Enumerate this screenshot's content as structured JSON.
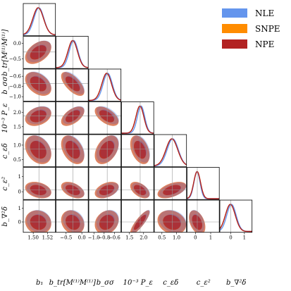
{
  "chart_data": {
    "type": "corner",
    "colors": {
      "NLE": "#6495ED",
      "SNPE": "#FF8C00",
      "NPE": "#B22222",
      "truth": "#999999"
    },
    "legend": {
      "placement": "top-right",
      "entries": [
        "NLE",
        "SNPE",
        "NPE"
      ]
    },
    "parameters": [
      {
        "label": "b₁",
        "ticks": [
          "1.50",
          "1.52"
        ],
        "tickvals": [
          1.5,
          1.52
        ],
        "range": [
          1.486,
          1.532
        ],
        "truth": 1.508
      },
      {
        "label": "b_tr[M⁽¹⁾M⁽¹⁾]",
        "ticks": [
          "−0.5",
          "0.0"
        ],
        "tickvals": [
          -0.5,
          0.0
        ],
        "range": [
          -0.82,
          0.22
        ],
        "truth": -0.28
      },
      {
        "label": "b_σσ",
        "ticks": [
          "−1.0",
          "−0.8",
          "−0.6"
        ],
        "tickvals": [
          -1.0,
          -0.8,
          -0.6
        ],
        "range": [
          -1.1,
          -0.46
        ],
        "truth": -0.74
      },
      {
        "label": "10⁻³ P_ε",
        "ticks": [
          "1.5",
          "2.0"
        ],
        "tickvals": [
          1.5,
          2.0
        ],
        "range": [
          1.22,
          2.38
        ],
        "truth": 1.88
      },
      {
        "label": "c_εδ",
        "ticks": [
          "0.5",
          "1.0"
        ],
        "tickvals": [
          0.5,
          1.0
        ],
        "range": [
          0.24,
          1.36
        ],
        "truth": 0.86
      },
      {
        "label": "c_ε²",
        "ticks": [
          "0",
          "1"
        ],
        "tickvals": [
          0,
          1
        ],
        "range": [
          -0.55,
          1.6
        ],
        "truth": 0.12
      },
      {
        "label": "b_∇²δ",
        "ticks": [
          "0",
          "1"
        ],
        "tickvals": [
          0,
          1
        ],
        "range": [
          -0.8,
          1.6
        ],
        "truth": 0.0
      }
    ],
    "row_ticks": [
      null,
      {
        "labels": [
          "0.0",
          "−0.5"
        ],
        "values": [
          0.0,
          -0.5
        ]
      },
      {
        "labels": [
          "−0.6",
          "−0.8",
          "−1.0"
        ],
        "values": [
          -0.6,
          -0.8,
          -1.0
        ]
      },
      {
        "labels": [
          "2.0",
          "1.5"
        ],
        "values": [
          2.0,
          1.5
        ]
      },
      {
        "labels": [
          "1.0",
          "0.5"
        ],
        "values": [
          1.0,
          0.5
        ]
      },
      {
        "labels": [
          "1",
          "0"
        ],
        "values": [
          1,
          0
        ]
      },
      {
        "labels": [
          "1",
          "0"
        ],
        "values": [
          1,
          0
        ]
      }
    ],
    "series": [
      {
        "name": "NLE",
        "means": [
          1.508,
          -0.26,
          -0.73,
          1.91,
          0.87,
          0.1,
          0.05
        ],
        "sds": [
          0.007,
          0.14,
          0.09,
          0.13,
          0.19,
          0.2,
          0.34
        ]
      },
      {
        "name": "SNPE",
        "means": [
          1.507,
          -0.29,
          -0.75,
          1.87,
          0.84,
          0.11,
          -0.03
        ],
        "sds": [
          0.0075,
          0.15,
          0.095,
          0.14,
          0.2,
          0.22,
          0.36
        ]
      },
      {
        "name": "NPE",
        "means": [
          1.507,
          -0.29,
          -0.75,
          1.87,
          0.84,
          0.11,
          -0.03
        ],
        "sds": [
          0.0075,
          0.15,
          0.095,
          0.14,
          0.2,
          0.22,
          0.36
        ]
      }
    ],
    "correlations": [
      [
        0,
        1,
        0.45
      ],
      [
        0,
        2,
        -0.4
      ],
      [
        0,
        3,
        0.3
      ],
      [
        0,
        4,
        -0.3
      ],
      [
        0,
        5,
        -0.3
      ],
      [
        0,
        6,
        -0.1
      ],
      [
        1,
        2,
        -0.65
      ],
      [
        1,
        3,
        0.55
      ],
      [
        1,
        4,
        -0.4
      ],
      [
        1,
        5,
        -0.45
      ],
      [
        1,
        6,
        -0.2
      ],
      [
        2,
        3,
        -0.55
      ],
      [
        2,
        4,
        0.4
      ],
      [
        2,
        5,
        0.4
      ],
      [
        2,
        6,
        0.2
      ],
      [
        3,
        4,
        -0.4
      ],
      [
        3,
        5,
        -0.5
      ],
      [
        3,
        6,
        0.85
      ],
      [
        4,
        5,
        0.5
      ],
      [
        4,
        6,
        -0.2
      ],
      [
        5,
        6,
        -0.4
      ]
    ]
  }
}
